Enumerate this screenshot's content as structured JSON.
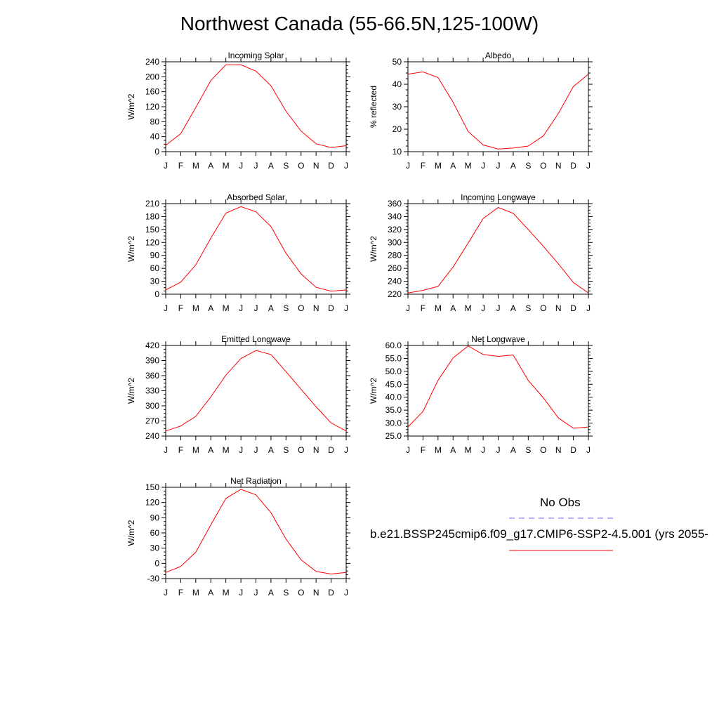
{
  "page": {
    "title": "Northwest Canada (55-66.5N,125-100W)"
  },
  "legend": {
    "obs_label": "No Obs",
    "obs_color": "#6666ff",
    "model_label": "b.e21.BSSP245cmip6.f09_g17.CMIP6-SSP2-4.5.001 (yrs 2055-",
    "model_color": "#ff0000"
  },
  "chart_data": [
    {
      "type": "line",
      "title": "Incoming Solar",
      "ylabel": "W/m^2",
      "x": [
        "J",
        "F",
        "M",
        "A",
        "M",
        "J",
        "J",
        "A",
        "S",
        "O",
        "N",
        "D",
        "J"
      ],
      "ylim": [
        0,
        240
      ],
      "yticks": [
        "0",
        "40",
        "80",
        "120",
        "160",
        "200",
        "240"
      ],
      "series": [
        {
          "values": [
            17,
            48,
            118,
            190,
            232,
            232,
            215,
            176,
            108,
            55,
            21,
            11,
            16
          ]
        }
      ]
    },
    {
      "type": "line",
      "title": "Albedo",
      "ylabel": "% reflected",
      "x": [
        "J",
        "F",
        "M",
        "A",
        "M",
        "J",
        "J",
        "A",
        "S",
        "O",
        "N",
        "D",
        "J"
      ],
      "ylim": [
        10,
        50
      ],
      "yticks": [
        "10",
        "20",
        "30",
        "40",
        "50"
      ],
      "series": [
        {
          "values": [
            44.5,
            45.5,
            43,
            32,
            19,
            13,
            11.2,
            11.6,
            12.5,
            17,
            27,
            39,
            44.5
          ]
        }
      ]
    },
    {
      "type": "line",
      "title": "Absorbed Solar",
      "ylabel": "W/m^2",
      "x": [
        "J",
        "F",
        "M",
        "A",
        "M",
        "J",
        "J",
        "A",
        "S",
        "O",
        "N",
        "D",
        "J"
      ],
      "ylim": [
        0,
        210
      ],
      "yticks": [
        "0",
        "30",
        "60",
        "90",
        "120",
        "150",
        "180",
        "210"
      ],
      "series": [
        {
          "values": [
            10,
            28,
            68,
            130,
            188,
            203,
            191,
            157,
            95,
            47,
            16,
            7,
            10
          ]
        }
      ]
    },
    {
      "type": "line",
      "title": "Incoming Longwave",
      "ylabel": "W/m^2",
      "x": [
        "J",
        "F",
        "M",
        "A",
        "M",
        "J",
        "J",
        "A",
        "S",
        "O",
        "N",
        "D",
        "J"
      ],
      "ylim": [
        220,
        360
      ],
      "yticks": [
        "220",
        "240",
        "260",
        "280",
        "300",
        "320",
        "340",
        "360"
      ],
      "series": [
        {
          "values": [
            222,
            226,
            232,
            262,
            299,
            337,
            354,
            345,
            320,
            294,
            267,
            238,
            222
          ]
        }
      ]
    },
    {
      "type": "line",
      "title": "Emitted Longwave",
      "ylabel": "W/m^2",
      "x": [
        "J",
        "F",
        "M",
        "A",
        "M",
        "J",
        "J",
        "A",
        "S",
        "O",
        "N",
        "D",
        "J"
      ],
      "ylim": [
        240,
        420
      ],
      "yticks": [
        "240",
        "270",
        "300",
        "330",
        "360",
        "390",
        "420"
      ],
      "series": [
        {
          "values": [
            250,
            260,
            279,
            318,
            361,
            394,
            410,
            402,
            368,
            333,
            298,
            266,
            250
          ]
        }
      ]
    },
    {
      "type": "line",
      "title": "Net Longwave",
      "ylabel": "W/m^2",
      "x": [
        "J",
        "F",
        "M",
        "A",
        "M",
        "J",
        "J",
        "A",
        "S",
        "O",
        "N",
        "D",
        "J"
      ],
      "ylim": [
        25,
        60
      ],
      "yticks": [
        "25.0",
        "30.0",
        "35.0",
        "40.0",
        "45.0",
        "50.0",
        "55.0",
        "60.0"
      ],
      "series": [
        {
          "values": [
            28.5,
            34.5,
            46.5,
            55.2,
            59.8,
            56.5,
            55.8,
            56.3,
            46.5,
            39.8,
            32,
            28,
            28.5
          ]
        }
      ]
    },
    {
      "type": "line",
      "title": "Net Radiation",
      "ylabel": "W/m^2",
      "x": [
        "J",
        "F",
        "M",
        "A",
        "M",
        "J",
        "J",
        "A",
        "S",
        "O",
        "N",
        "D",
        "J"
      ],
      "ylim": [
        -30,
        150
      ],
      "yticks": [
        "-30",
        "0",
        "30",
        "60",
        "90",
        "120",
        "150"
      ],
      "series": [
        {
          "values": [
            -18,
            -6,
            22,
            76,
            128,
            146,
            135,
            100,
            48,
            7,
            -16,
            -21,
            -18
          ]
        }
      ]
    }
  ]
}
